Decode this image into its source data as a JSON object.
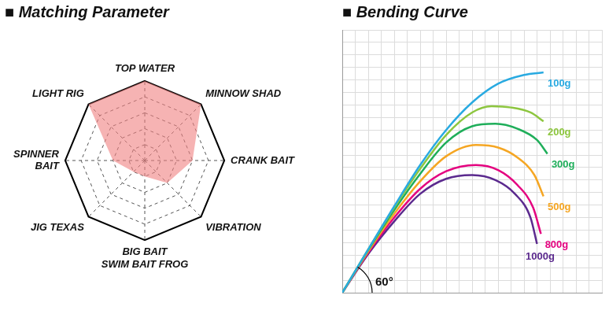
{
  "chart_data": [
    {
      "type": "radar",
      "title": "■ Matching Parameter",
      "categories": [
        "TOP WATER",
        "MINNOW SHAD",
        "CRANK BAIT",
        "VIBRATION",
        [
          "BIG BAIT",
          "SWIM BAIT FROG"
        ],
        "JIG TEXAS",
        [
          "SPINNER",
          "BAIT"
        ],
        "LIGHT RIG"
      ],
      "values": [
        5,
        5,
        3,
        2,
        1,
        1,
        2,
        5
      ],
      "color": "#f08080",
      "ylim": [
        0,
        5
      ],
      "yticks": [
        0,
        1,
        2,
        3,
        4,
        5
      ],
      "tick_labels": false,
      "grid": true
    },
    {
      "type": "line",
      "title": "■ Bending Curve",
      "annotation": "60°",
      "xlim": [
        0,
        20
      ],
      "xticks": [
        0,
        1,
        2,
        3,
        4,
        5,
        6,
        7,
        8,
        9,
        10,
        11,
        12,
        13,
        14,
        15,
        16,
        17,
        18,
        19,
        20
      ],
      "ylim": [
        0,
        21
      ],
      "yticks": [
        0,
        1,
        2,
        3,
        4,
        5,
        6,
        7,
        8,
        9,
        10,
        11,
        12,
        13,
        14,
        15,
        16,
        17,
        18,
        19,
        20,
        21
      ],
      "tick_labels": false,
      "grid": true,
      "series": [
        {
          "name": "100g",
          "color": "#29aae1",
          "x": [
            0,
            2,
            4,
            6,
            8,
            10,
            12,
            14,
            15.5
          ],
          "values": [
            0,
            3.46,
            6.9,
            10.2,
            13,
            15.2,
            16.7,
            17.4,
            17.6
          ]
        },
        {
          "name": "200g",
          "color": "#8dc63f",
          "x": [
            0,
            2,
            4,
            6,
            8,
            10,
            11.5,
            13,
            14.5,
            15.5
          ],
          "values": [
            0,
            3.46,
            6.8,
            9.9,
            12.6,
            14.4,
            14.9,
            14.8,
            14.4,
            13.7
          ]
        },
        {
          "name": "300g",
          "color": "#1fae5a",
          "x": [
            0,
            2,
            4,
            6,
            8,
            10,
            11.8,
            13.5,
            15,
            15.8
          ],
          "values": [
            0,
            3.4,
            6.6,
            9.5,
            12,
            13.3,
            13.5,
            13.1,
            12.2,
            11.1
          ]
        },
        {
          "name": "500g",
          "color": "#f5a623",
          "x": [
            0,
            2,
            4,
            6,
            8,
            10.3,
            12,
            13.5,
            14.8,
            15.5
          ],
          "values": [
            0,
            3.3,
            6.3,
            8.9,
            10.9,
            11.8,
            11.6,
            10.8,
            9.4,
            7.7
          ]
        },
        {
          "name": "800g",
          "color": "#e4007f",
          "x": [
            0,
            2,
            4,
            6,
            8,
            10.3,
            12,
            13.5,
            14.7,
            15.3
          ],
          "values": [
            0,
            3.2,
            6,
            8.3,
            9.7,
            10.2,
            9.8,
            8.6,
            6.8,
            4.7
          ]
        },
        {
          "name": "1000g",
          "color": "#5b2a8e",
          "x": [
            0,
            2,
            4,
            6,
            8,
            10,
            11.8,
            13.3,
            14.5,
            15
          ],
          "values": [
            0,
            3.1,
            5.7,
            7.9,
            9.1,
            9.4,
            9,
            7.9,
            6,
            3.9
          ]
        }
      ]
    }
  ]
}
